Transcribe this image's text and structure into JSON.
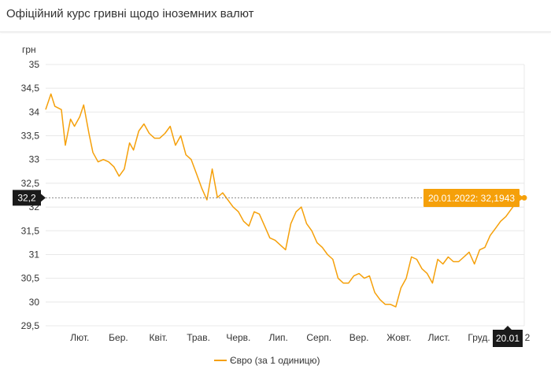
{
  "title": "Офіційний курс гривні щодо іноземних валют",
  "colors": {
    "series": "#f5a00a",
    "tooltip_bg": "#f5a00a",
    "crosshair_label_bg": "#1a1a1a",
    "grid": "#e8e8e8",
    "text": "#333333"
  },
  "chart_data": {
    "type": "line",
    "title": "Офіційний курс гривні щодо іноземних валют",
    "ylabel": "грн",
    "xlabel": "",
    "ylim": [
      29.5,
      35
    ],
    "yticks": [
      "35",
      "34,5",
      "34",
      "33,5",
      "33",
      "32,5",
      "32",
      "31,5",
      "31",
      "30,5",
      "30",
      "29,5"
    ],
    "ytick_values": [
      35,
      34.5,
      34,
      33.5,
      33,
      32.5,
      32,
      31.5,
      31,
      30.5,
      30,
      29.5
    ],
    "xlim": [
      "2021-01-20",
      "2022-01-20"
    ],
    "xticks": [
      {
        "label": "Лют.",
        "date": "2021-02-01"
      },
      {
        "label": "Бер.",
        "date": "2021-03-01"
      },
      {
        "label": "Квіт.",
        "date": "2021-04-01"
      },
      {
        "label": "Трав.",
        "date": "2021-05-01"
      },
      {
        "label": "Черв.",
        "date": "2021-06-01"
      },
      {
        "label": "Лип.",
        "date": "2021-07-01"
      },
      {
        "label": "Серп.",
        "date": "2021-08-01"
      },
      {
        "label": "Вер.",
        "date": "2021-09-01"
      },
      {
        "label": "Жовт.",
        "date": "2021-10-01"
      },
      {
        "label": "Лист.",
        "date": "2021-11-01"
      },
      {
        "label": "Груд.",
        "date": "2021-12-01"
      },
      {
        "label": "2",
        "date": "2022-01-01"
      }
    ],
    "grid": true,
    "legend": "bottom-center",
    "series": [
      {
        "name": "Євро (за 1 одиницю)",
        "x": [
          "2021-01-20",
          "2021-01-24",
          "2021-01-27",
          "2021-02-01",
          "2021-02-04",
          "2021-02-08",
          "2021-02-11",
          "2021-02-15",
          "2021-02-18",
          "2021-02-22",
          "2021-02-25",
          "2021-03-01",
          "2021-03-05",
          "2021-03-09",
          "2021-03-13",
          "2021-03-17",
          "2021-03-21",
          "2021-03-25",
          "2021-03-28",
          "2021-04-01",
          "2021-04-05",
          "2021-04-09",
          "2021-04-13",
          "2021-04-17",
          "2021-04-21",
          "2021-04-25",
          "2021-04-29",
          "2021-05-03",
          "2021-05-07",
          "2021-05-11",
          "2021-05-15",
          "2021-05-19",
          "2021-05-23",
          "2021-05-27",
          "2021-05-31",
          "2021-06-04",
          "2021-06-08",
          "2021-06-12",
          "2021-06-16",
          "2021-06-20",
          "2021-06-24",
          "2021-06-28",
          "2021-07-02",
          "2021-07-06",
          "2021-07-10",
          "2021-07-14",
          "2021-07-18",
          "2021-07-22",
          "2021-07-26",
          "2021-07-30",
          "2021-08-03",
          "2021-08-07",
          "2021-08-11",
          "2021-08-15",
          "2021-08-19",
          "2021-08-23",
          "2021-08-27",
          "2021-08-31",
          "2021-09-04",
          "2021-09-08",
          "2021-09-12",
          "2021-09-16",
          "2021-09-20",
          "2021-09-24",
          "2021-09-28",
          "2021-10-02",
          "2021-10-06",
          "2021-10-10",
          "2021-10-14",
          "2021-10-18",
          "2021-10-22",
          "2021-10-26",
          "2021-10-30",
          "2021-11-03",
          "2021-11-07",
          "2021-11-11",
          "2021-11-15",
          "2021-11-19",
          "2021-11-23",
          "2021-11-27",
          "2021-12-01",
          "2021-12-05",
          "2021-12-09",
          "2021-12-13",
          "2021-12-17",
          "2021-12-21",
          "2021-12-25",
          "2021-12-29",
          "2022-01-02",
          "2022-01-06",
          "2022-01-10",
          "2022-01-14",
          "2022-01-17",
          "2022-01-20"
        ],
        "y": [
          34.05,
          34.38,
          34.12,
          34.05,
          33.3,
          33.85,
          33.7,
          33.9,
          34.15,
          33.55,
          33.15,
          32.95,
          33.0,
          32.95,
          32.85,
          32.65,
          32.8,
          33.35,
          33.2,
          33.6,
          33.75,
          33.55,
          33.45,
          33.45,
          33.55,
          33.7,
          33.3,
          33.5,
          33.1,
          33.0,
          32.7,
          32.4,
          32.15,
          32.8,
          32.2,
          32.3,
          32.15,
          32.0,
          31.9,
          31.7,
          31.6,
          31.9,
          31.85,
          31.6,
          31.35,
          31.3,
          31.2,
          31.1,
          31.65,
          31.9,
          32.0,
          31.65,
          31.5,
          31.25,
          31.15,
          31.0,
          30.9,
          30.5,
          30.4,
          30.4,
          30.55,
          30.6,
          30.5,
          30.55,
          30.2,
          30.05,
          29.95,
          29.95,
          29.9,
          30.3,
          30.5,
          30.95,
          30.9,
          30.7,
          30.6,
          30.4,
          30.9,
          30.8,
          30.95,
          30.85,
          30.85,
          30.95,
          31.05,
          30.8,
          31.1,
          31.15,
          31.4,
          31.55,
          31.7,
          31.8,
          31.95,
          32.1,
          32.2,
          32.1943
        ]
      }
    ],
    "crosshair": {
      "y_label": "32,2",
      "x_label": "20.01"
    },
    "tooltip": {
      "date": "20.01.2022",
      "value": "32,1943",
      "text": "20.01.2022: 32,1943"
    }
  }
}
